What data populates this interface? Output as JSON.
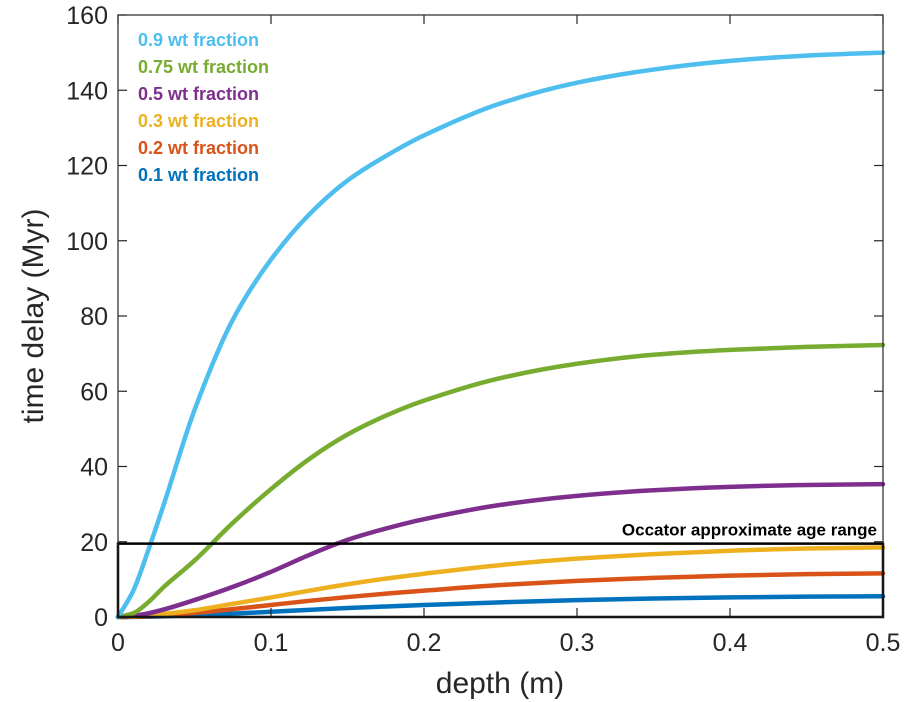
{
  "chart_data": {
    "type": "line",
    "title": "",
    "xlabel": "depth (m)",
    "ylabel": "time delay (Myr)",
    "xlim": [
      0,
      0.5
    ],
    "ylim": [
      0,
      160
    ],
    "xticks": [
      0,
      0.1,
      0.2,
      0.3,
      0.4,
      0.5
    ],
    "yticks": [
      0,
      20,
      40,
      60,
      80,
      100,
      120,
      140,
      160
    ],
    "xtick_labels": [
      "0",
      "0.1",
      "0.2",
      "0.3",
      "0.4",
      "0.5"
    ],
    "ytick_labels": [
      "0",
      "20",
      "40",
      "60",
      "80",
      "100",
      "120",
      "140",
      "160"
    ],
    "grid": false,
    "legend_position": "top-left",
    "x": [
      0,
      0.01,
      0.02,
      0.03,
      0.05,
      0.075,
      0.1,
      0.125,
      0.15,
      0.175,
      0.2,
      0.25,
      0.3,
      0.35,
      0.4,
      0.45,
      0.5
    ],
    "series": [
      {
        "name": "0.9 wt fraction",
        "color": "#4DBEEE",
        "values": [
          0,
          7,
          18,
          30,
          55,
          79,
          95,
          107,
          116,
          122.5,
          128,
          136.5,
          142,
          145.5,
          147.8,
          149.2,
          150
        ]
      },
      {
        "name": "0.75 wt fraction",
        "color": "#77AC30",
        "values": [
          0,
          1,
          4,
          8,
          15,
          25,
          34,
          42,
          48.5,
          53.5,
          57.5,
          63.5,
          67.3,
          69.7,
          71,
          71.8,
          72.3
        ]
      },
      {
        "name": "0.5 wt fraction",
        "color": "#7E2F8E",
        "values": [
          0,
          0.3,
          1,
          2,
          4.5,
          8,
          12,
          16.5,
          20.5,
          23.5,
          26,
          29.8,
          32.2,
          33.7,
          34.6,
          35.1,
          35.3
        ]
      },
      {
        "name": "0.3 wt fraction",
        "color": "#EDB120",
        "values": [
          0,
          0.1,
          0.4,
          0.8,
          1.8,
          3.5,
          5.2,
          7,
          8.7,
          10.2,
          11.5,
          13.8,
          15.5,
          16.7,
          17.6,
          18.2,
          18.5
        ]
      },
      {
        "name": "0.2 wt fraction",
        "color": "#D95319",
        "values": [
          0,
          0.05,
          0.2,
          0.5,
          1.1,
          2.1,
          3.2,
          4.3,
          5.3,
          6.2,
          7,
          8.5,
          9.6,
          10.4,
          11,
          11.4,
          11.6
        ]
      },
      {
        "name": "0.1 wt fraction",
        "color": "#0072BD",
        "values": [
          0,
          0.02,
          0.1,
          0.2,
          0.5,
          0.9,
          1.4,
          1.9,
          2.4,
          2.8,
          3.2,
          3.9,
          4.5,
          4.9,
          5.2,
          5.4,
          5.5
        ]
      }
    ],
    "annotations": [
      {
        "text": "Occator approximate age range",
        "y_range": [
          0,
          19.5
        ],
        "x_range": [
          0,
          0.5
        ]
      }
    ]
  }
}
